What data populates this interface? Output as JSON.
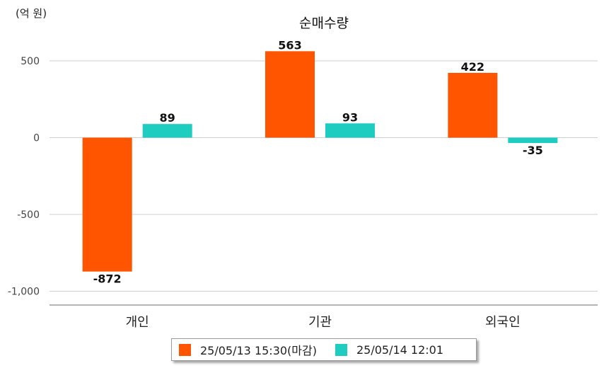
{
  "unit_label": "(억 원)",
  "chart_data": {
    "type": "bar",
    "title": "순매수량",
    "xlabel": "",
    "ylabel": "",
    "categories": [
      "개인",
      "기관",
      "외국인"
    ],
    "series": [
      {
        "name": "25/05/13 15:30(마감)",
        "values": [
          -872,
          563,
          422
        ],
        "labels": [
          "-872",
          "563",
          "422"
        ]
      },
      {
        "name": "25/05/14 12:01",
        "values": [
          89,
          93,
          -35
        ],
        "labels": [
          "89",
          "93",
          "-35"
        ]
      }
    ],
    "yticks": [
      500,
      0,
      -500,
      -1000
    ],
    "ytick_labels": [
      "500",
      "0",
      "-500",
      "-1,000"
    ],
    "ylim": [
      -1090,
      620
    ],
    "grid": true,
    "legend_position": "bottom-center",
    "colors": [
      "#ff5500",
      "#1ecdc0"
    ]
  }
}
